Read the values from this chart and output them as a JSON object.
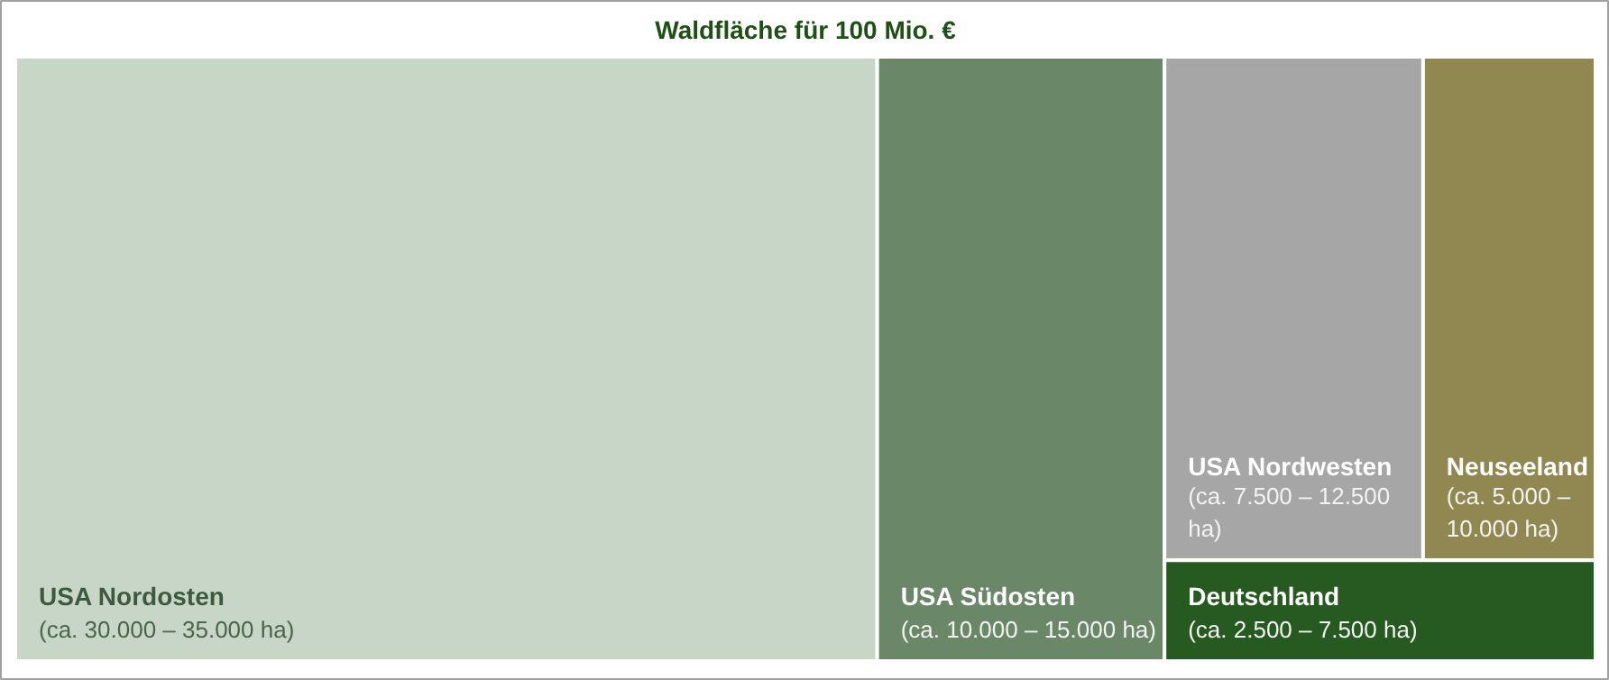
{
  "chart_data": {
    "type": "other",
    "title": "Waldfläche für 100 Mio. €",
    "categories": [
      "USA Nordosten",
      "USA Südosten",
      "USA Nordwesten",
      "Neuseeland",
      "Deutschland"
    ],
    "values": [
      30000,
      10000,
      7500,
      5000,
      2500
    ],
    "value_labels": [
      "(ca. 30.000 – 35.000 ha)",
      "(ca. 10.000 – 15.000 ha)",
      "(ca. 7.500 – 12.500 ha)",
      "(ca. 5.000 – 10.000 ha)",
      "(ca. 2.500 – 7.500 ha)"
    ],
    "colors": [
      "#c8d6c8",
      "#6a8868",
      "#a6a6a6",
      "#908850",
      "#265a20"
    ]
  }
}
